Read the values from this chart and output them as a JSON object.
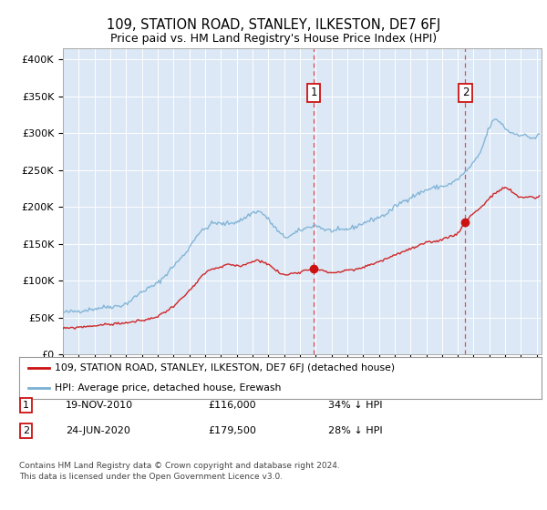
{
  "title": "109, STATION ROAD, STANLEY, ILKESTON, DE7 6FJ",
  "subtitle": "Price paid vs. HM Land Registry's House Price Index (HPI)",
  "ylabel_ticks": [
    "£0",
    "£50K",
    "£100K",
    "£150K",
    "£200K",
    "£250K",
    "£300K",
    "£350K",
    "£400K"
  ],
  "ytick_values": [
    0,
    50000,
    100000,
    150000,
    200000,
    250000,
    300000,
    350000,
    400000
  ],
  "ylim": [
    0,
    415000
  ],
  "xlim_start": 1995.0,
  "xlim_end": 2025.3,
  "hpi_color": "#7ab0d4",
  "price_color": "#cc1111",
  "marker1_x": 2010.88,
  "marker1_y": 116000,
  "marker2_x": 2020.48,
  "marker2_y": 179500,
  "legend_line1": "109, STATION ROAD, STANLEY, ILKESTON, DE7 6FJ (detached house)",
  "legend_line2": "HPI: Average price, detached house, Erewash",
  "footer": "Contains HM Land Registry data © Crown copyright and database right 2024.\nThis data is licensed under the Open Government Licence v3.0.",
  "background_color": "#ffffff",
  "plot_bg_color": "#dce8f5"
}
